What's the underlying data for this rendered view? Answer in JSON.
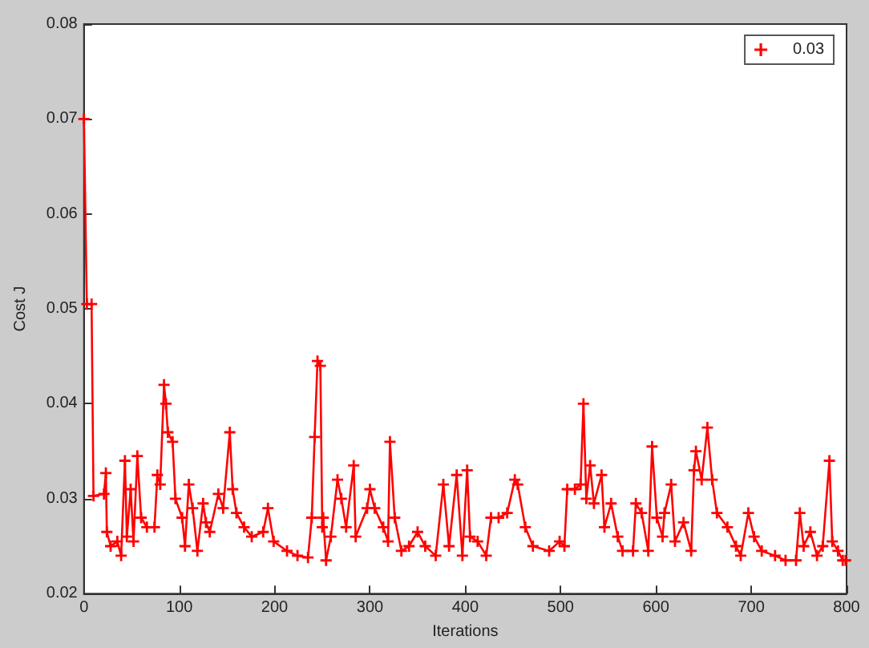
{
  "chart_data": {
    "type": "line",
    "xlabel": "Iterations",
    "ylabel": "Cost J",
    "xlim": [
      0,
      800
    ],
    "ylim": [
      0.02,
      0.08
    ],
    "xticks": [
      0,
      100,
      200,
      300,
      400,
      500,
      600,
      700,
      800
    ],
    "yticks": [
      0.02,
      0.03,
      0.04,
      0.05,
      0.06,
      0.07,
      0.08
    ],
    "grid": false,
    "legend": "top right",
    "marker": "cross",
    "line_style": "solid",
    "series": [
      {
        "name": "0.03",
        "color": "#ff0000",
        "x": [
          0,
          3,
          8,
          10,
          21,
          23,
          24,
          28,
          35,
          39,
          43,
          45,
          49,
          52,
          56,
          60,
          66,
          74,
          77,
          80,
          84,
          86,
          88,
          93,
          96,
          103,
          106,
          110,
          114,
          119,
          125,
          128,
          132,
          141,
          146,
          153,
          156,
          160,
          168,
          176,
          188,
          193,
          199,
          213,
          224,
          235,
          239,
          242,
          245,
          248,
          250,
          251,
          254,
          259,
          266,
          270,
          275,
          283,
          285,
          297,
          300,
          305,
          314,
          319,
          321,
          326,
          333,
          341,
          350,
          358,
          369,
          377,
          383,
          391,
          397,
          402,
          405,
          413,
          422,
          427,
          435,
          444,
          452,
          455,
          463,
          471,
          488,
          499,
          504,
          507,
          515,
          521,
          524,
          527,
          531,
          535,
          543,
          546,
          553,
          560,
          565,
          576,
          579,
          585,
          592,
          596,
          601,
          607,
          609,
          616,
          620,
          629,
          637,
          640,
          642,
          648,
          654,
          659,
          664,
          675,
          684,
          689,
          697,
          703,
          711,
          725,
          736,
          747,
          751,
          755,
          762,
          769,
          775,
          782,
          785,
          791,
          796,
          799
        ],
        "values": [
          0.07,
          0.0505,
          0.0505,
          0.0303,
          0.0305,
          0.0327,
          0.0265,
          0.025,
          0.0255,
          0.024,
          0.034,
          0.026,
          0.031,
          0.0255,
          0.0345,
          0.028,
          0.027,
          0.027,
          0.0325,
          0.0315,
          0.042,
          0.04,
          0.037,
          0.036,
          0.03,
          0.028,
          0.025,
          0.0315,
          0.029,
          0.0245,
          0.0295,
          0.0275,
          0.0265,
          0.0305,
          0.029,
          0.037,
          0.031,
          0.0285,
          0.027,
          0.026,
          0.0265,
          0.029,
          0.0255,
          0.0245,
          0.024,
          0.0238,
          0.028,
          0.0365,
          0.0445,
          0.044,
          0.027,
          0.028,
          0.0235,
          0.026,
          0.032,
          0.03,
          0.027,
          0.0335,
          0.026,
          0.029,
          0.031,
          0.029,
          0.027,
          0.0255,
          0.036,
          0.028,
          0.0245,
          0.025,
          0.0265,
          0.025,
          0.024,
          0.0315,
          0.025,
          0.0325,
          0.024,
          0.033,
          0.026,
          0.0255,
          0.024,
          0.028,
          0.028,
          0.0285,
          0.032,
          0.0315,
          0.027,
          0.025,
          0.0245,
          0.0255,
          0.025,
          0.031,
          0.031,
          0.0315,
          0.04,
          0.03,
          0.0335,
          0.0295,
          0.0325,
          0.027,
          0.0295,
          0.026,
          0.0245,
          0.0245,
          0.0295,
          0.0285,
          0.0245,
          0.0355,
          0.028,
          0.026,
          0.0285,
          0.0315,
          0.0255,
          0.0275,
          0.0245,
          0.033,
          0.035,
          0.032,
          0.0375,
          0.032,
          0.0285,
          0.027,
          0.025,
          0.024,
          0.0285,
          0.026,
          0.0245,
          0.024,
          0.0235,
          0.0235,
          0.0285,
          0.025,
          0.0265,
          0.024,
          0.025,
          0.034,
          0.0255,
          0.0245,
          0.0235,
          0.0235
        ]
      }
    ]
  }
}
